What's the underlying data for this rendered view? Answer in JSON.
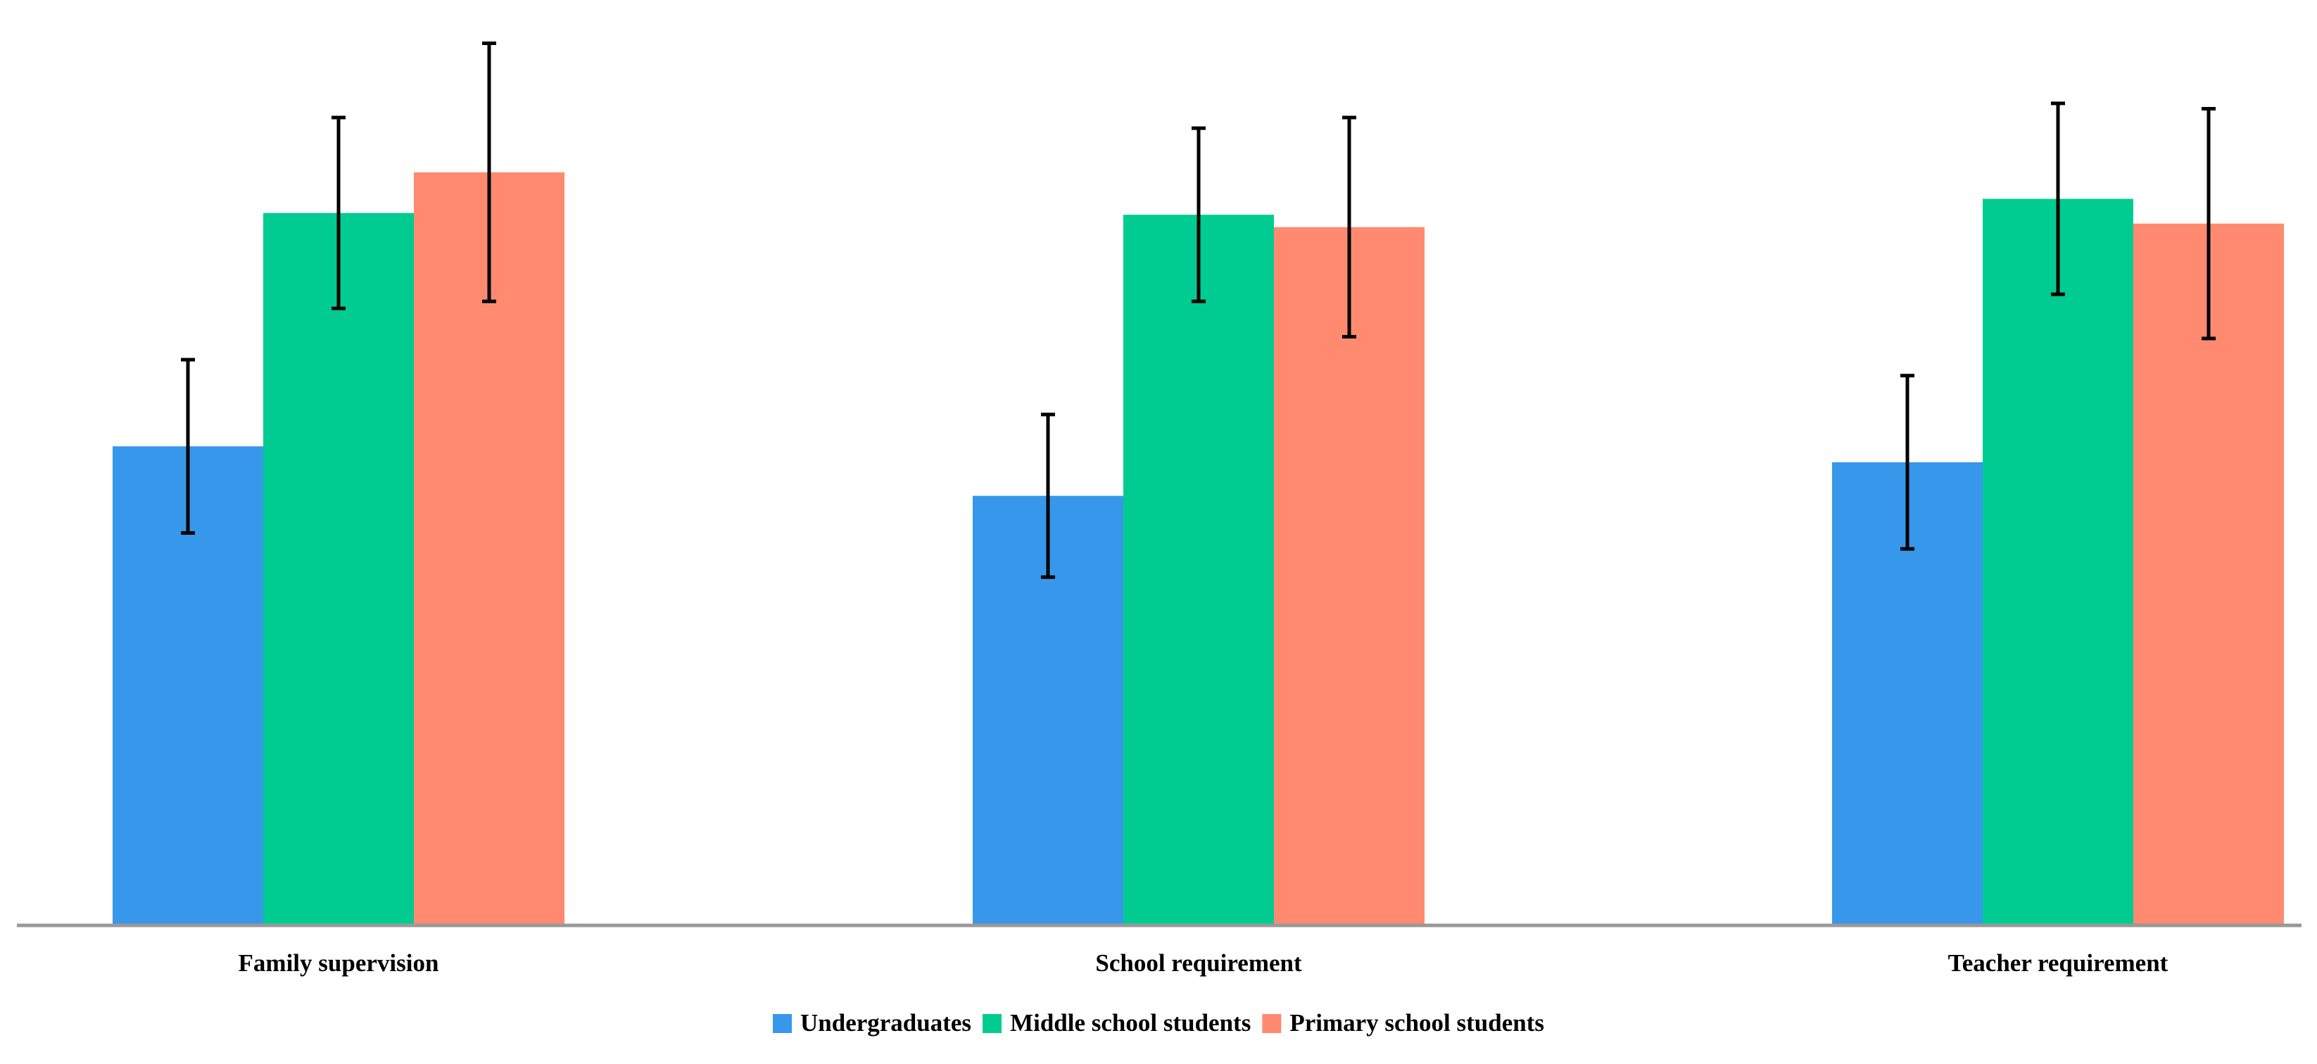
{
  "chart_data": {
    "type": "bar",
    "title": "",
    "xlabel": "",
    "ylabel": "",
    "categories": [
      "Family supervision",
      "School requirement",
      "Teacher requirement"
    ],
    "series": [
      {
        "name": "Undergraduates",
        "color": "#3797EA",
        "values": [
          2.71,
          2.43,
          2.62
        ],
        "errors": [
          0.49,
          0.46,
          0.49
        ]
      },
      {
        "name": "Middle school students",
        "color": "#00CC92",
        "values": [
          4.03,
          4.02,
          4.11
        ],
        "errors": [
          0.54,
          0.49,
          0.54
        ]
      },
      {
        "name": "Primary school students",
        "color": "#FF8A70",
        "values": [
          4.26,
          3.95,
          3.97
        ],
        "errors": [
          0.73,
          0.62,
          0.65
        ]
      }
    ],
    "ylim": [
      0,
      5
    ],
    "grid": false,
    "y_axis_visible": false,
    "legend_position": "bottom",
    "error_bars": true
  }
}
